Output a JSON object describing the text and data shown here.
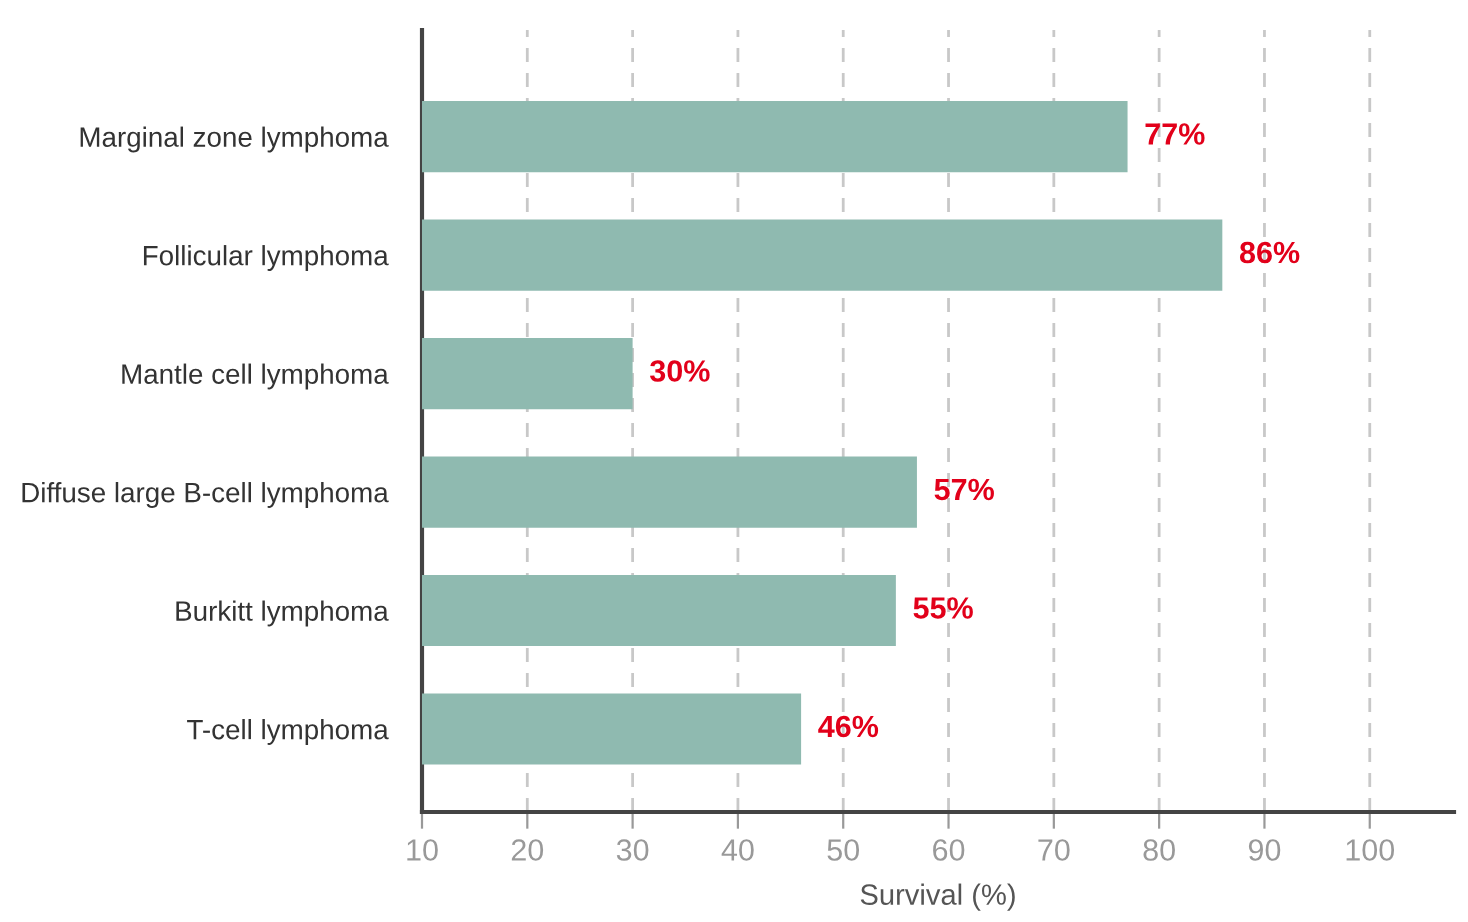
{
  "chart_data": {
    "type": "bar",
    "orientation": "horizontal",
    "xlabel": "Survival (%)",
    "categories": [
      "Marginal zone lymphoma",
      "Follicular lymphoma",
      "Mantle cell lymphoma",
      "Diffuse large B-cell lymphoma",
      "Burkitt lymphoma",
      "T-cell lymphoma"
    ],
    "values": [
      77,
      86,
      30,
      57,
      55,
      46
    ],
    "value_labels": [
      "77%",
      "86%",
      "30%",
      "57%",
      "55%",
      "46%"
    ],
    "color": "#8fbab0",
    "xlim": [
      10,
      108
    ],
    "xticks": [
      10,
      20,
      30,
      40,
      50,
      60,
      70,
      80,
      90,
      100
    ],
    "grid": "x",
    "legend": false
  }
}
